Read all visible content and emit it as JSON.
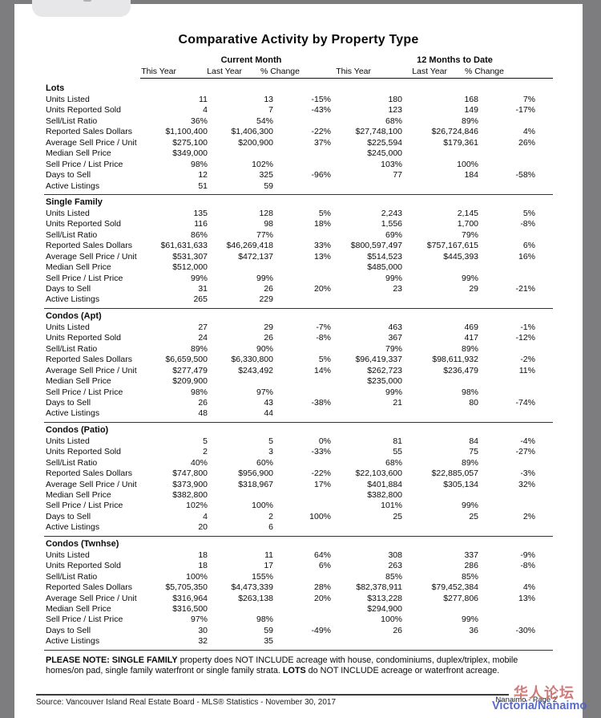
{
  "title": "Comparative Activity by Property Type",
  "table": {
    "group_headers": [
      "Current Month",
      "12 Months to Date"
    ],
    "sub_headers": [
      "This Year",
      "Last Year",
      "% Change",
      "This Year",
      "Last Year",
      "% Change"
    ],
    "row_labels": [
      "Units Listed",
      "Units Reported Sold",
      "Sell/List Ratio",
      "Reported Sales Dollars",
      "Average Sell Price / Unit",
      "Median Sell Price",
      "Sell Price / List Price",
      "Days to Sell",
      "Active Listings"
    ],
    "sections": [
      {
        "name": "Lots",
        "rows": [
          [
            "11",
            "13",
            "-15%",
            "180",
            "168",
            "7%"
          ],
          [
            "4",
            "7",
            "-43%",
            "123",
            "149",
            "-17%"
          ],
          [
            "36%",
            "54%",
            "",
            "68%",
            "89%",
            ""
          ],
          [
            "$1,100,400",
            "$1,406,300",
            "-22%",
            "$27,748,100",
            "$26,724,846",
            "4%"
          ],
          [
            "$275,100",
            "$200,900",
            "37%",
            "$225,594",
            "$179,361",
            "26%"
          ],
          [
            "$349,000",
            "",
            "",
            "$245,000",
            "",
            ""
          ],
          [
            "98%",
            "102%",
            "",
            "103%",
            "100%",
            ""
          ],
          [
            "12",
            "325",
            "-96%",
            "77",
            "184",
            "-58%"
          ],
          [
            "51",
            "59",
            "",
            "",
            "",
            ""
          ]
        ]
      },
      {
        "name": "Single Family",
        "rows": [
          [
            "135",
            "128",
            "5%",
            "2,243",
            "2,145",
            "5%"
          ],
          [
            "116",
            "98",
            "18%",
            "1,556",
            "1,700",
            "-8%"
          ],
          [
            "86%",
            "77%",
            "",
            "69%",
            "79%",
            ""
          ],
          [
            "$61,631,633",
            "$46,269,418",
            "33%",
            "$800,597,497",
            "$757,167,615",
            "6%"
          ],
          [
            "$531,307",
            "$472,137",
            "13%",
            "$514,523",
            "$445,393",
            "16%"
          ],
          [
            "$512,000",
            "",
            "",
            "$485,000",
            "",
            ""
          ],
          [
            "99%",
            "99%",
            "",
            "99%",
            "99%",
            ""
          ],
          [
            "31",
            "26",
            "20%",
            "23",
            "29",
            "-21%"
          ],
          [
            "265",
            "229",
            "",
            "",
            "",
            ""
          ]
        ]
      },
      {
        "name": "Condos (Apt)",
        "rows": [
          [
            "27",
            "29",
            "-7%",
            "463",
            "469",
            "-1%"
          ],
          [
            "24",
            "26",
            "-8%",
            "367",
            "417",
            "-12%"
          ],
          [
            "89%",
            "90%",
            "",
            "79%",
            "89%",
            ""
          ],
          [
            "$6,659,500",
            "$6,330,800",
            "5%",
            "$96,419,337",
            "$98,611,932",
            "-2%"
          ],
          [
            "$277,479",
            "$243,492",
            "14%",
            "$262,723",
            "$236,479",
            "11%"
          ],
          [
            "$209,900",
            "",
            "",
            "$235,000",
            "",
            ""
          ],
          [
            "98%",
            "97%",
            "",
            "99%",
            "98%",
            ""
          ],
          [
            "26",
            "43",
            "-38%",
            "21",
            "80",
            "-74%"
          ],
          [
            "48",
            "44",
            "",
            "",
            "",
            ""
          ]
        ]
      },
      {
        "name": "Condos (Patio)",
        "rows": [
          [
            "5",
            "5",
            "0%",
            "81",
            "84",
            "-4%"
          ],
          [
            "2",
            "3",
            "-33%",
            "55",
            "75",
            "-27%"
          ],
          [
            "40%",
            "60%",
            "",
            "68%",
            "89%",
            ""
          ],
          [
            "$747,800",
            "$956,900",
            "-22%",
            "$22,103,600",
            "$22,885,057",
            "-3%"
          ],
          [
            "$373,900",
            "$318,967",
            "17%",
            "$401,884",
            "$305,134",
            "32%"
          ],
          [
            "$382,800",
            "",
            "",
            "$382,800",
            "",
            ""
          ],
          [
            "102%",
            "100%",
            "",
            "101%",
            "99%",
            ""
          ],
          [
            "4",
            "2",
            "100%",
            "25",
            "25",
            "2%"
          ],
          [
            "20",
            "6",
            "",
            "",
            "",
            ""
          ]
        ]
      },
      {
        "name": "Condos (Twnhse)",
        "rows": [
          [
            "18",
            "11",
            "64%",
            "308",
            "337",
            "-9%"
          ],
          [
            "18",
            "17",
            "6%",
            "263",
            "286",
            "-8%"
          ],
          [
            "100%",
            "155%",
            "",
            "85%",
            "85%",
            ""
          ],
          [
            "$5,705,350",
            "$4,473,339",
            "28%",
            "$82,378,911",
            "$79,452,384",
            "4%"
          ],
          [
            "$316,964",
            "$263,138",
            "20%",
            "$313,228",
            "$277,806",
            "13%"
          ],
          [
            "$316,500",
            "",
            "",
            "$294,900",
            "",
            ""
          ],
          [
            "97%",
            "98%",
            "",
            "100%",
            "99%",
            ""
          ],
          [
            "30",
            "59",
            "-49%",
            "26",
            "36",
            "-30%"
          ],
          [
            "32",
            "35",
            "",
            "",
            "",
            ""
          ]
        ]
      }
    ]
  },
  "note": {
    "bold_lead": "PLEASE NOTE: SINGLE FAMILY",
    "text_1": " property does NOT INCLUDE acreage with house, condominiums, duplex/triplex, mobile homes/on pad, single family waterfront or single family strata.  ",
    "bold_2": "LOTS",
    "text_2": " do NOT INCLUDE acreage or waterfront acreage."
  },
  "footer": {
    "source": "Source: Vancouver Island Real Estate Board - MLS® Statistics - November 30, 2017",
    "page_label": "Nanaimo - Page 2"
  },
  "watermark": {
    "red_text": "华人论坛",
    "red_color": "#c95c5c",
    "blue_text": "Victoria/Nanaimo",
    "blue_color": "#4a5ec7"
  }
}
